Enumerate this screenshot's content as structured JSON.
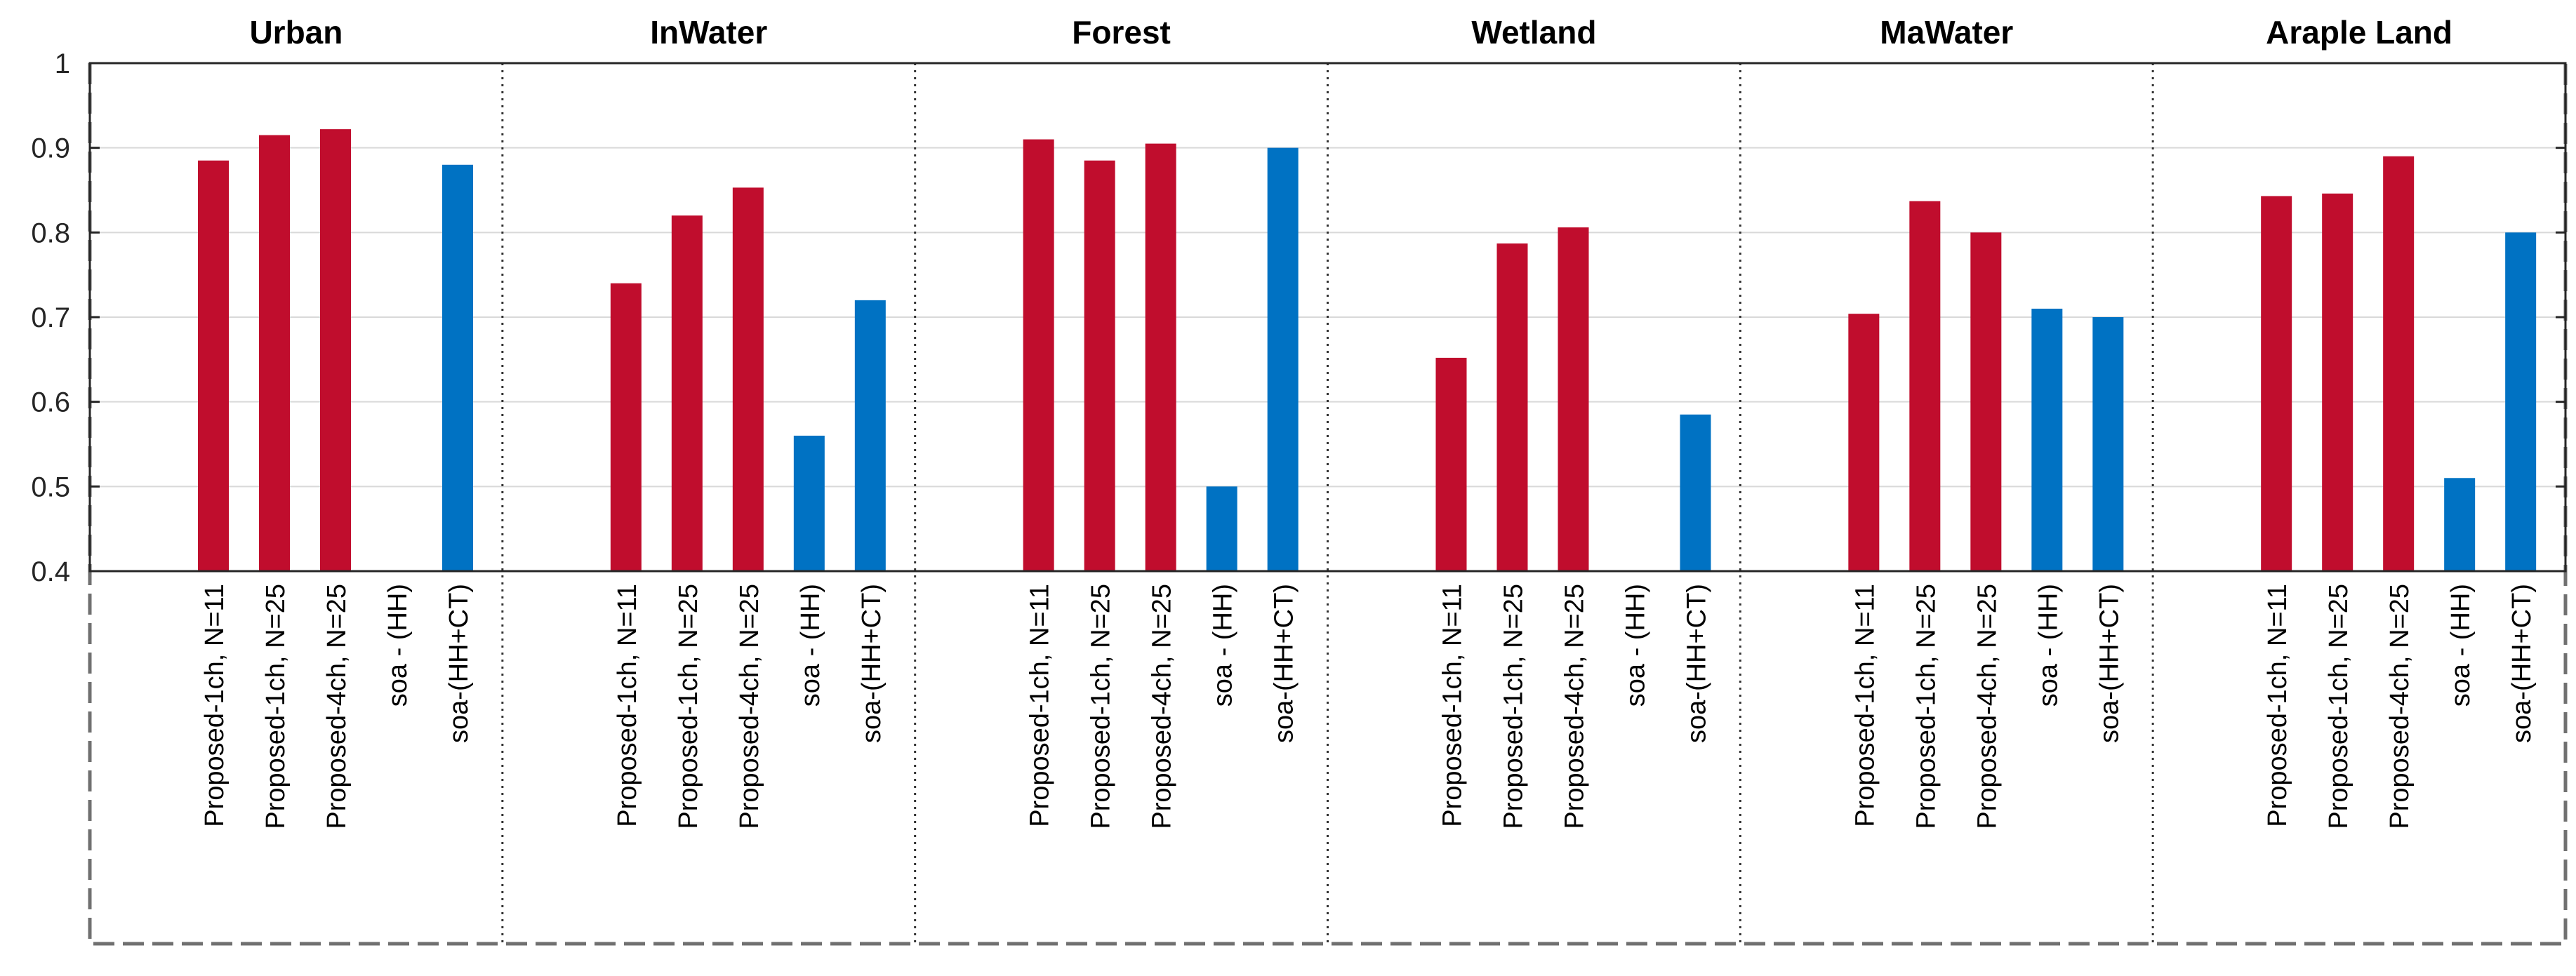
{
  "chart_data": {
    "type": "bar",
    "ylim": [
      0.4,
      1.0
    ],
    "yticks": [
      0.4,
      0.5,
      0.6,
      0.7,
      0.8,
      0.9,
      1.0
    ],
    "ytick_labels": [
      "0.4",
      "0.5",
      "0.6",
      "0.7",
      "0.8",
      "0.9",
      "1"
    ],
    "grid": true,
    "series_colors": {
      "proposed": "#C00D2D",
      "soa": "#0072C3"
    },
    "categories": [
      "Proposed-1ch, N=11",
      "Proposed-1ch, N=25",
      "Proposed-4ch, N=25",
      "soa - (HH)",
      "soa-(HH+CT)"
    ],
    "category_series": [
      "proposed",
      "proposed",
      "proposed",
      "soa",
      "soa"
    ],
    "groups": [
      {
        "title": "Urban",
        "values": [
          0.885,
          0.915,
          0.922,
          0.4,
          0.88
        ]
      },
      {
        "title": "InWater",
        "values": [
          0.74,
          0.82,
          0.853,
          0.56,
          0.72
        ]
      },
      {
        "title": "Forest",
        "values": [
          0.91,
          0.885,
          0.905,
          0.5,
          0.9
        ]
      },
      {
        "title": "Wetland",
        "values": [
          0.652,
          0.787,
          0.806,
          0.4,
          0.585
        ]
      },
      {
        "title": "MaWater",
        "values": [
          0.704,
          0.837,
          0.8,
          0.71,
          0.7
        ]
      },
      {
        "title": "Araple Land",
        "values": [
          0.843,
          0.846,
          0.89,
          0.51,
          0.8
        ]
      }
    ]
  }
}
